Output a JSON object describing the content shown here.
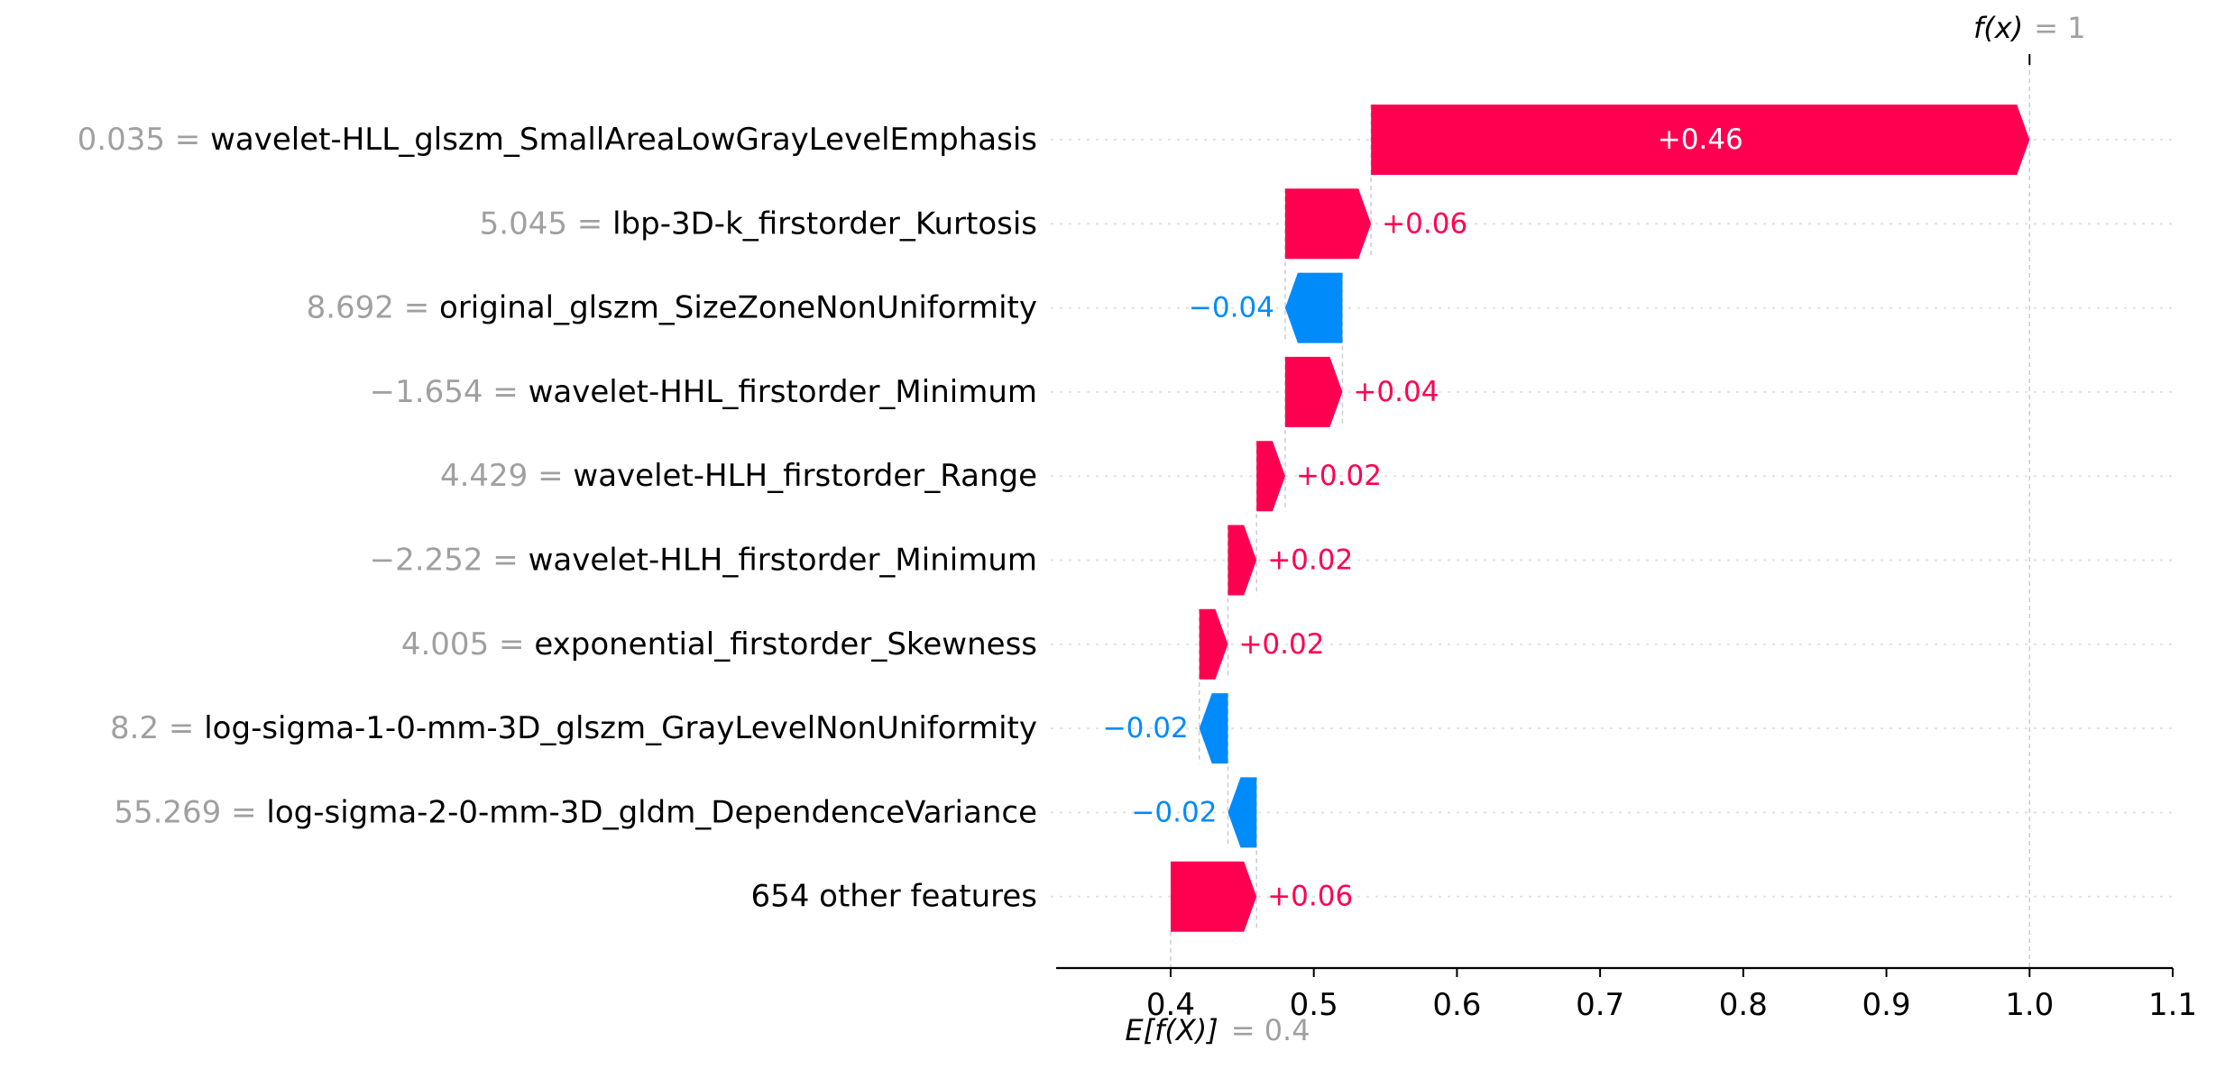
{
  "chart_data": {
    "type": "waterfall",
    "base_value": 0.4,
    "final_value": 1.0,
    "expected_label": "E[f(X)]",
    "expected_value_text": "= 0.4",
    "fx_label": "f(x)",
    "fx_value_text": "= 1",
    "xlim": [
      0.32,
      1.1
    ],
    "xticks": [
      "0.4",
      "0.5",
      "0.6",
      "0.7",
      "0.8",
      "0.9",
      "1.0",
      "1.1"
    ],
    "colors": {
      "positive": "#ff0051",
      "negative": "#008bfb",
      "feature_value": "#a0a0a0"
    },
    "features": [
      {
        "value": "0.035",
        "name": "wavelet-HLL_glszm_SmallAreaLowGrayLevelEmphasis",
        "contribution": 0.46,
        "label": "+0.46"
      },
      {
        "value": "5.045",
        "name": "lbp-3D-k_firstorder_Kurtosis",
        "contribution": 0.06,
        "label": "+0.06"
      },
      {
        "value": "8.692",
        "name": "original_glszm_SizeZoneNonUniformity",
        "contribution": -0.04,
        "label": "−0.04"
      },
      {
        "value": "−1.654",
        "name": "wavelet-HHL_firstorder_Minimum",
        "contribution": 0.04,
        "label": "+0.04"
      },
      {
        "value": "4.429",
        "name": "wavelet-HLH_firstorder_Range",
        "contribution": 0.02,
        "label": "+0.02"
      },
      {
        "value": "−2.252",
        "name": "wavelet-HLH_firstorder_Minimum",
        "contribution": 0.02,
        "label": "+0.02"
      },
      {
        "value": "4.005",
        "name": "exponential_firstorder_Skewness",
        "contribution": 0.02,
        "label": "+0.02"
      },
      {
        "value": "8.2",
        "name": "log-sigma-1-0-mm-3D_glszm_GrayLevelNonUniformity",
        "contribution": -0.02,
        "label": "−0.02"
      },
      {
        "value": "55.269",
        "name": "log-sigma-2-0-mm-3D_gldm_DependenceVariance",
        "contribution": -0.02,
        "label": "−0.02"
      },
      {
        "value": "",
        "name": "654 other features",
        "contribution": 0.06,
        "label": "+0.06"
      }
    ]
  }
}
